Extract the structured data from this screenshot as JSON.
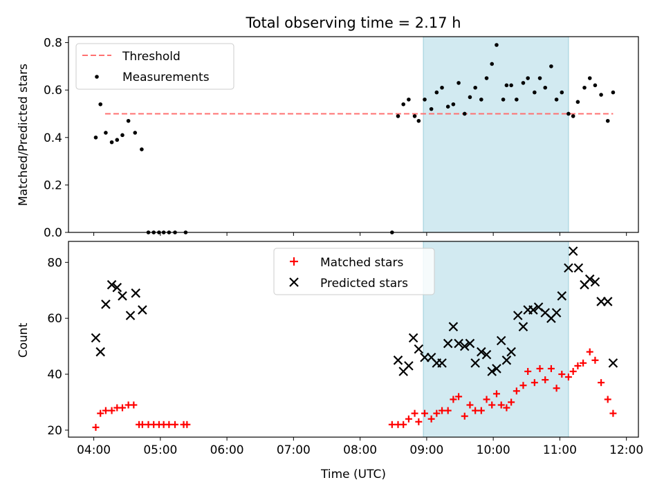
{
  "figure": {
    "title": "Total observing time = 2.17 h",
    "xlabel": "Time (UTC)",
    "x_ticks": [
      "04:00",
      "05:00",
      "06:00",
      "07:00",
      "08:00",
      "09:00",
      "10:00",
      "11:00",
      "12:00"
    ],
    "x_tick_hours": [
      4,
      5,
      6,
      7,
      8,
      9,
      10,
      11,
      12
    ],
    "xlim_hours": [
      3.62,
      12.18
    ],
    "observing_window_hours": [
      8.95,
      11.13
    ],
    "colors": {
      "threshold": "#ff7070",
      "window": "#add8e6",
      "matched": "#ff0000",
      "predicted": "#000000",
      "measurements": "#000000"
    }
  },
  "chart_data": [
    {
      "type": "scatter",
      "ylabel": "Matched/Predicted stars",
      "ylim": [
        0,
        0.825
      ],
      "y_ticks": [
        0.0,
        0.2,
        0.4,
        0.6,
        0.8
      ],
      "y_tick_labels": [
        "0.0",
        "0.2",
        "0.4",
        "0.6",
        "0.8"
      ],
      "legend_position": "top-left",
      "threshold": {
        "name": "Threshold",
        "value": 0.5,
        "x_range": [
          4.17,
          11.8
        ]
      },
      "series": [
        {
          "name": "Measurements",
          "x": [
            4.03,
            4.1,
            4.18,
            4.27,
            4.35,
            4.43,
            4.52,
            4.62,
            4.72,
            4.82,
            4.9,
            4.98,
            5.05,
            5.13,
            5.22,
            5.38,
            8.48,
            8.57,
            8.65,
            8.73,
            8.82,
            8.88,
            8.97,
            9.07,
            9.15,
            9.23,
            9.32,
            9.4,
            9.48,
            9.57,
            9.65,
            9.73,
            9.82,
            9.9,
            9.98,
            10.05,
            10.15,
            10.2,
            10.27,
            10.35,
            10.45,
            10.52,
            10.62,
            10.7,
            10.78,
            10.87,
            10.95,
            11.03,
            11.13,
            11.2,
            11.27,
            11.37,
            11.45,
            11.53,
            11.62,
            11.72,
            11.8
          ],
          "y": [
            0.4,
            0.54,
            0.42,
            0.38,
            0.39,
            0.41,
            0.47,
            0.42,
            0.35,
            0.0,
            0.0,
            0.0,
            0.0,
            0.0,
            0.0,
            0.0,
            0.0,
            0.49,
            0.54,
            0.56,
            0.49,
            0.47,
            0.56,
            0.52,
            0.59,
            0.61,
            0.53,
            0.54,
            0.63,
            0.5,
            0.57,
            0.61,
            0.56,
            0.65,
            0.71,
            0.79,
            0.56,
            0.62,
            0.62,
            0.56,
            0.63,
            0.65,
            0.59,
            0.65,
            0.61,
            0.7,
            0.56,
            0.59,
            0.5,
            0.49,
            0.55,
            0.61,
            0.65,
            0.62,
            0.58,
            0.47,
            0.59
          ]
        }
      ]
    },
    {
      "type": "scatter",
      "ylabel": "Count",
      "ylim": [
        17.5,
        87.5
      ],
      "y_ticks": [
        20,
        40,
        60,
        80
      ],
      "y_tick_labels": [
        "20",
        "40",
        "60",
        "80"
      ],
      "legend_position": "top-center",
      "series": [
        {
          "name": "Matched stars",
          "marker": "+",
          "x": [
            4.03,
            4.1,
            4.18,
            4.27,
            4.35,
            4.43,
            4.52,
            4.6,
            4.68,
            4.73,
            4.82,
            4.9,
            4.98,
            5.05,
            5.13,
            5.22,
            5.35,
            5.4,
            8.48,
            8.57,
            8.65,
            8.73,
            8.82,
            8.88,
            8.97,
            9.07,
            9.15,
            9.23,
            9.32,
            9.4,
            9.48,
            9.57,
            9.65,
            9.73,
            9.82,
            9.9,
            9.98,
            10.05,
            10.12,
            10.2,
            10.27,
            10.35,
            10.45,
            10.52,
            10.62,
            10.7,
            10.78,
            10.87,
            10.95,
            11.03,
            11.13,
            11.2,
            11.27,
            11.35,
            11.45,
            11.53,
            11.62,
            11.72,
            11.8
          ],
          "y": [
            21,
            26,
            27,
            27,
            28,
            28,
            29,
            29,
            22,
            22,
            22,
            22,
            22,
            22,
            22,
            22,
            22,
            22,
            22,
            22,
            22,
            24,
            26,
            23,
            26,
            24,
            26,
            27,
            27,
            31,
            32,
            25,
            29,
            27,
            27,
            31,
            29,
            33,
            29,
            28,
            30,
            34,
            36,
            41,
            37,
            42,
            38,
            42,
            35,
            40,
            39,
            41,
            43,
            44,
            48,
            45,
            37,
            31,
            26
          ]
        },
        {
          "name": "Predicted stars",
          "marker": "x",
          "x": [
            4.03,
            4.1,
            4.18,
            4.27,
            4.35,
            4.43,
            4.55,
            4.63,
            4.73,
            8.57,
            8.65,
            8.73,
            8.8,
            8.88,
            8.97,
            9.07,
            9.15,
            9.23,
            9.32,
            9.4,
            9.48,
            9.57,
            9.65,
            9.73,
            9.82,
            9.9,
            9.98,
            10.05,
            10.12,
            10.2,
            10.27,
            10.37,
            10.45,
            10.52,
            10.6,
            10.68,
            10.78,
            10.87,
            10.95,
            11.03,
            11.13,
            11.2,
            11.28,
            11.37,
            11.45,
            11.53,
            11.62,
            11.72,
            11.8
          ],
          "y": [
            53,
            48,
            65,
            72,
            71,
            68,
            61,
            69,
            63,
            45,
            41,
            43,
            53,
            49,
            46,
            46,
            44,
            44,
            51,
            57,
            51,
            50,
            51,
            44,
            48,
            47,
            41,
            42,
            52,
            45,
            48,
            61,
            57,
            63,
            63,
            64,
            62,
            60,
            62,
            68,
            78,
            84,
            78,
            72,
            74,
            73,
            66,
            66,
            44
          ]
        }
      ]
    }
  ]
}
